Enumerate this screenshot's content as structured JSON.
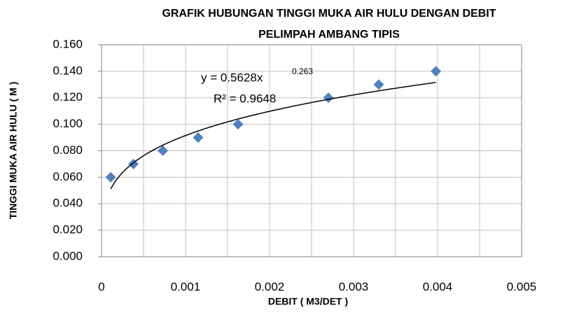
{
  "chart_data": {
    "type": "scatter",
    "title": [
      "GRAFIK HUBUNGAN TINGGI MUKA AIR HULU DENGAN DEBIT",
      "PELIMPAH AMBANG TIPIS"
    ],
    "xlabel": "DEBIT ( M3/DET )",
    "ylabel": "TINGGI MUKA AIR HULU ( M )",
    "series": [
      {
        "color": "#4f81bd",
        "x": [
          0.00011,
          0.00038,
          0.00073,
          0.00115,
          0.001625,
          0.0027,
          0.0033,
          0.00398
        ],
        "values": [
          0.06,
          0.07,
          0.08,
          0.09,
          0.1,
          0.12,
          0.13,
          0.14
        ]
      }
    ],
    "trendline": {
      "type": "power",
      "color": "#000000",
      "coefficient": 0.5628,
      "exponent": 0.263,
      "r_squared": 0.9648,
      "equation_label": "y = 0.5628x",
      "exponent_label": "0.263",
      "r_squared_label": "R² = 0.9648"
    },
    "xlim": [
      0,
      0.005
    ],
    "xticks": [
      0,
      0.001,
      0.002,
      0.003,
      0.004,
      0.005
    ],
    "x_minor_grid": [
      0.0005,
      0.0015,
      0.0025,
      0.0035,
      0.0045
    ],
    "ylim": [
      0,
      0.16
    ],
    "yticks": [
      {
        "value": 0,
        "label": "0.000"
      },
      {
        "value": 0.02,
        "label": "0.020"
      },
      {
        "value": 0.04,
        "label": "0.040"
      },
      {
        "value": 0.06,
        "label": "0.060"
      },
      {
        "value": 0.08,
        "label": "0.080"
      },
      {
        "value": 0.1,
        "label": "0.100"
      },
      {
        "value": 0.12,
        "label": "0.120"
      },
      {
        "value": 0.14,
        "label": "0.140"
      },
      {
        "value": 0.16,
        "label": "0.160"
      }
    ],
    "grid": true
  }
}
